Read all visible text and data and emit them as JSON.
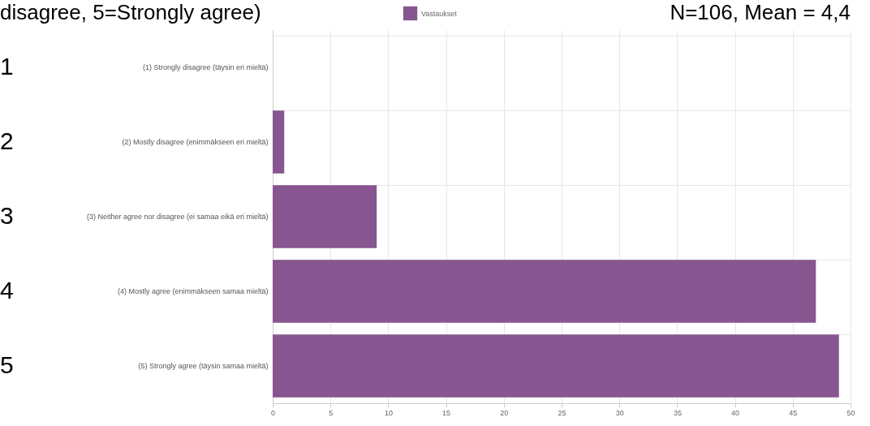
{
  "chart_data": {
    "type": "bar",
    "orientation": "horizontal",
    "title": "disagree, 5=Strongly agree)",
    "categories": [
      "(1) Strongly disagree (täysin eri mieltä)",
      "(2) Mostly disagree (enimmäkseen eri mieltä)",
      "(3) Neither agree nor disagree (ei samaa eikä eri mieltä)",
      "(4) Mostly agree (enimmäkseen samaa mieltä)",
      "(5) Strongly agree (täysin samaa mieltä)"
    ],
    "series": [
      {
        "name": "Vastaukset",
        "color": "#87558f",
        "values": [
          0,
          1,
          9,
          47,
          49
        ]
      }
    ],
    "xlim": [
      0,
      50
    ],
    "xticks": [
      0,
      5,
      10,
      15,
      20,
      25,
      30,
      35,
      40,
      45,
      50
    ],
    "grid": true,
    "legend": "top",
    "annotations": [
      "1",
      "2",
      "3",
      "4",
      "5",
      "N=106, Mean = 4,4"
    ]
  }
}
